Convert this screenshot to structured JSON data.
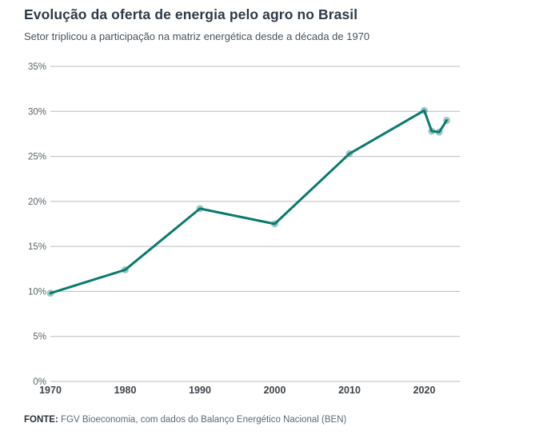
{
  "header": {
    "title": "Evolução da oferta de energia pelo agro no Brasil",
    "subtitle": "Setor triplicou a participação na matriz energética desde a década de 1970"
  },
  "footer": {
    "source_label": "FONTE:",
    "source_text": " FGV Bioeconomia, com dados do Balanço Energético Nacional (BEN)"
  },
  "colors": {
    "line": "#0a7a6e",
    "marker": "rgba(10,122,110,0.40)",
    "gridline": "#b9bcbf",
    "y_tick_text": "#5d6468",
    "x_tick_text": "#3f454a",
    "title_text": "#2e3a45",
    "subtitle_text": "#47525a"
  },
  "chart_data": {
    "type": "line",
    "title": "Evolução da oferta de energia pelo agro no Brasil",
    "subtitle": "Setor triplicou a participação na matriz energética desde a década de 1970",
    "x": [
      1970,
      1980,
      1990,
      2000,
      2010,
      2020,
      2021,
      2022,
      2023
    ],
    "values": [
      9.8,
      12.4,
      19.2,
      17.5,
      25.3,
      30.1,
      27.8,
      27.7,
      29.0
    ],
    "unit": "%",
    "xlabel": "",
    "ylabel": "",
    "xlim": [
      1970,
      2024.7
    ],
    "ylim": [
      0,
      35
    ],
    "y_ticks": [
      0,
      5,
      10,
      15,
      20,
      25,
      30,
      35
    ],
    "y_tick_labels": [
      "0%",
      "5%",
      "10%",
      "15%",
      "20%",
      "25%",
      "30%",
      "35%"
    ],
    "x_ticks": [
      1970,
      1980,
      1990,
      2000,
      2010,
      2020
    ],
    "x_tick_labels": [
      "1970",
      "1980",
      "1990",
      "2000",
      "2010",
      "2020"
    ],
    "grid": true,
    "legend": false,
    "source": "FONTE: FGV Bioeconomia, com dados do Balanço Energético Nacional (BEN)"
  }
}
